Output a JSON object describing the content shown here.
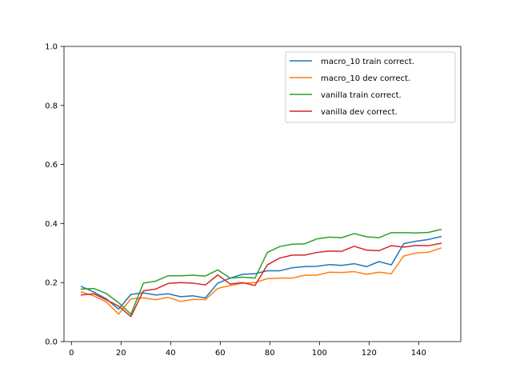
{
  "chart_data": {
    "type": "line",
    "title": "",
    "xlabel": "",
    "ylabel": "",
    "xlim": [
      -3,
      157
    ],
    "ylim": [
      0,
      1.0
    ],
    "xticks": [
      0,
      20,
      40,
      60,
      80,
      100,
      120,
      140
    ],
    "yticks": [
      0.0,
      0.2,
      0.4,
      0.6,
      0.8,
      1.0
    ],
    "xtick_labels": [
      "0",
      "20",
      "40",
      "60",
      "80",
      "100",
      "120",
      "140"
    ],
    "ytick_labels": [
      "0.0",
      "0.2",
      "0.4",
      "0.6",
      "0.8",
      "1.0"
    ],
    "grid": false,
    "legend_position": "top-right",
    "x": [
      4,
      9,
      14,
      19,
      24,
      29,
      34,
      39,
      44,
      49,
      54,
      59,
      64,
      69,
      74,
      79,
      84,
      89,
      94,
      99,
      104,
      109,
      114,
      119,
      124,
      129,
      134,
      139,
      144,
      149
    ],
    "series": [
      {
        "name": "macro_10 train correct.",
        "color": "#1f77b4",
        "values": [
          0.187,
          0.168,
          0.145,
          0.11,
          0.16,
          0.165,
          0.158,
          0.162,
          0.152,
          0.155,
          0.148,
          0.198,
          0.215,
          0.228,
          0.23,
          0.24,
          0.24,
          0.25,
          0.254,
          0.255,
          0.261,
          0.258,
          0.264,
          0.254,
          0.271,
          0.26,
          0.332,
          0.34,
          0.346,
          0.356
        ]
      },
      {
        "name": "macro_10 dev correct.",
        "color": "#ff7f0e",
        "values": [
          0.168,
          0.155,
          0.135,
          0.093,
          0.145,
          0.148,
          0.142,
          0.15,
          0.136,
          0.143,
          0.142,
          0.18,
          0.19,
          0.198,
          0.2,
          0.213,
          0.215,
          0.215,
          0.225,
          0.225,
          0.235,
          0.234,
          0.237,
          0.228,
          0.235,
          0.23,
          0.29,
          0.3,
          0.303,
          0.317
        ]
      },
      {
        "name": "vanilla train correct.",
        "color": "#2ca02c",
        "values": [
          0.178,
          0.18,
          0.163,
          0.132,
          0.093,
          0.198,
          0.205,
          0.223,
          0.223,
          0.225,
          0.222,
          0.243,
          0.215,
          0.218,
          0.215,
          0.302,
          0.322,
          0.33,
          0.331,
          0.348,
          0.354,
          0.352,
          0.366,
          0.355,
          0.352,
          0.369,
          0.369,
          0.368,
          0.37,
          0.38
        ]
      },
      {
        "name": "vanilla dev correct.",
        "color": "#d62728",
        "values": [
          0.158,
          0.162,
          0.142,
          0.12,
          0.085,
          0.172,
          0.178,
          0.197,
          0.2,
          0.198,
          0.192,
          0.226,
          0.195,
          0.2,
          0.19,
          0.26,
          0.283,
          0.293,
          0.293,
          0.302,
          0.307,
          0.306,
          0.323,
          0.31,
          0.308,
          0.325,
          0.32,
          0.326,
          0.325,
          0.333
        ]
      }
    ]
  }
}
